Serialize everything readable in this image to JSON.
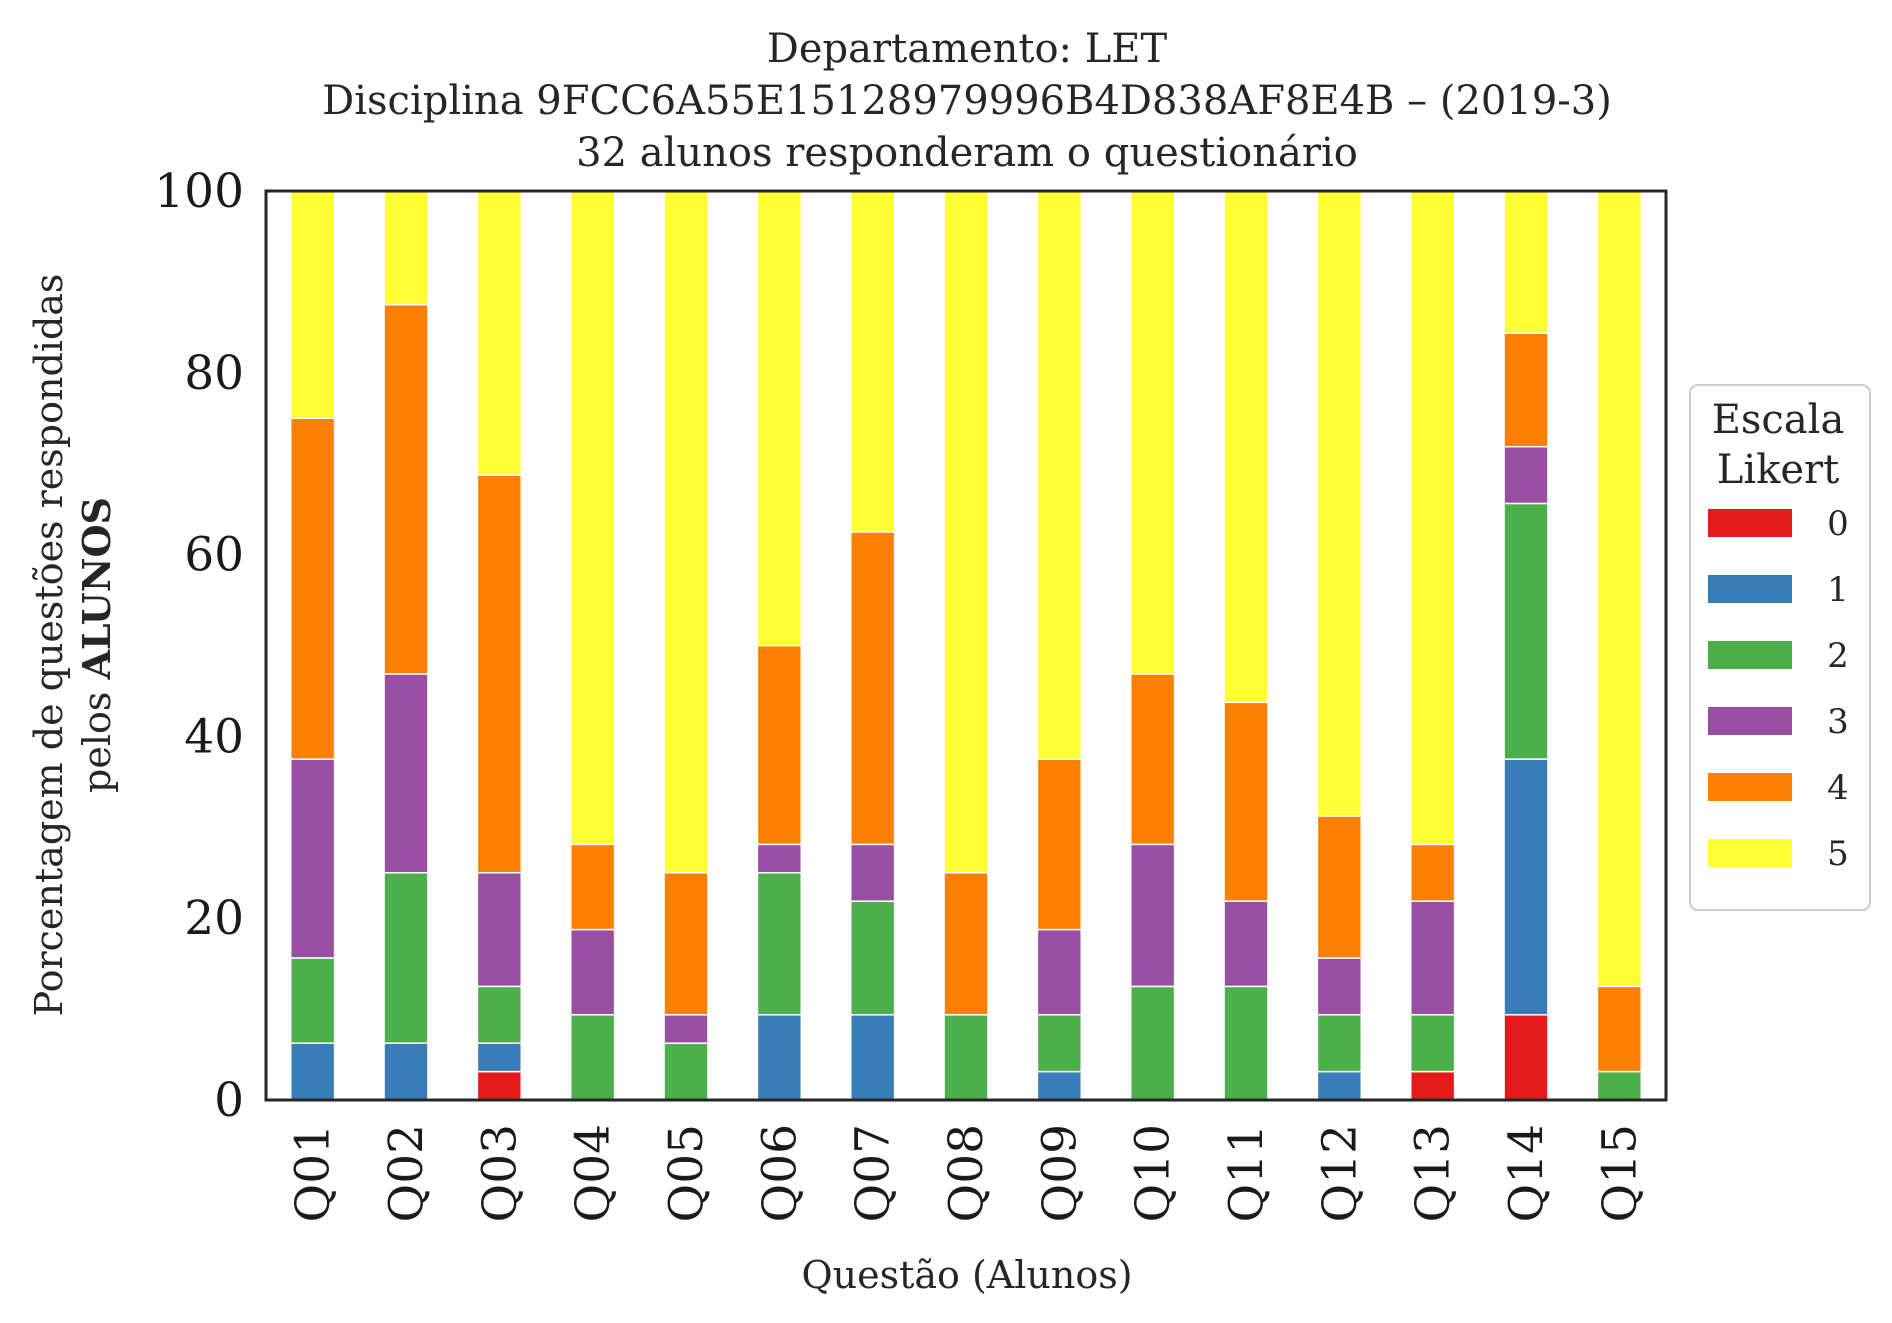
{
  "chart_data": {
    "type": "bar",
    "stacked": true,
    "title_lines": [
      "Departamento: LET",
      "Disciplina 9FCC6A55E15128979996B4D838AF8E4B – (2019-3)",
      "32 alunos responderam o questionário"
    ],
    "xlabel": "Questão (Alunos)",
    "ylabel_line1": "Porcentagem de questões respondidas",
    "ylabel_line2_prefix": "pelos ",
    "ylabel_line2_bold": "ALUNOS",
    "ylim": [
      0,
      100
    ],
    "yticks": [
      "0",
      "20",
      "40",
      "60",
      "80",
      "100"
    ],
    "grid": false,
    "legend_position": "right",
    "legend_title_lines": [
      "Escala",
      "Likert"
    ],
    "categories": [
      "Q01",
      "Q02",
      "Q03",
      "Q04",
      "Q05",
      "Q06",
      "Q07",
      "Q08",
      "Q09",
      "Q10",
      "Q11",
      "Q12",
      "Q13",
      "Q14",
      "Q15"
    ],
    "series": [
      {
        "name": "0",
        "color": "#e41a1c",
        "values": [
          0,
          0,
          3.125,
          0,
          0,
          0,
          0,
          0,
          0,
          0,
          0,
          0,
          3.125,
          9.375,
          0
        ]
      },
      {
        "name": "1",
        "color": "#377eb8",
        "values": [
          6.25,
          6.25,
          3.125,
          0,
          0,
          9.375,
          9.375,
          0,
          3.125,
          0,
          0,
          3.125,
          0,
          28.125,
          0
        ]
      },
      {
        "name": "2",
        "color": "#4daf4a",
        "values": [
          9.375,
          18.75,
          6.25,
          9.375,
          6.25,
          15.625,
          12.5,
          9.375,
          6.25,
          12.5,
          12.5,
          6.25,
          6.25,
          28.125,
          3.125
        ]
      },
      {
        "name": "3",
        "color": "#984ea3",
        "values": [
          21.875,
          21.875,
          12.5,
          9.375,
          3.125,
          3.125,
          6.25,
          0,
          9.375,
          15.625,
          9.375,
          6.25,
          12.5,
          6.25,
          0
        ]
      },
      {
        "name": "4",
        "color": "#ff7f00",
        "values": [
          37.5,
          40.625,
          43.75,
          9.375,
          15.625,
          21.875,
          34.375,
          15.625,
          18.75,
          18.75,
          21.875,
          15.625,
          6.25,
          12.5,
          9.375
        ]
      },
      {
        "name": "5",
        "color": "#ffff33",
        "values": [
          25,
          12.5,
          31.25,
          71.875,
          75,
          50,
          37.5,
          75,
          62.5,
          53.125,
          56.25,
          68.75,
          71.875,
          15.625,
          87.5
        ]
      }
    ]
  }
}
